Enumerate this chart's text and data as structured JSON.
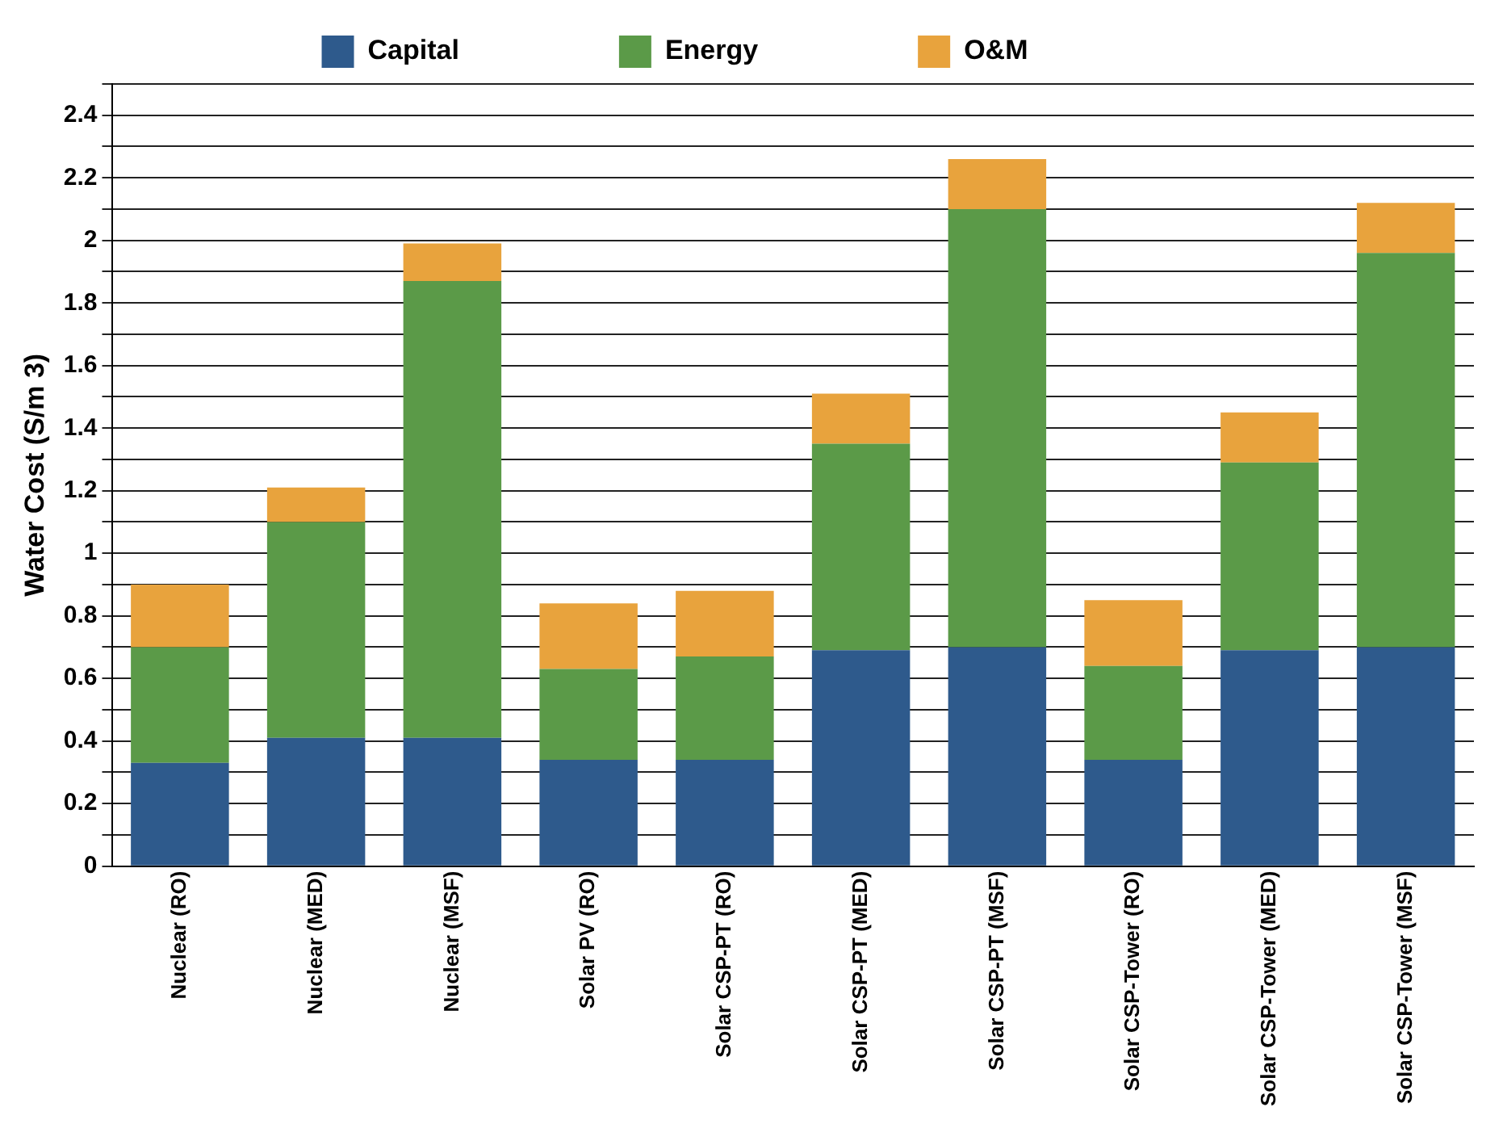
{
  "chart_data": {
    "type": "bar",
    "stacked": true,
    "ylabel": "Water Cost (S/m 3)",
    "categories": [
      "Nuclear (RO)",
      "Nuclear (MED)",
      "Nuclear (MSF)",
      "Solar PV (RO)",
      "Solar CSP-PT (RO)",
      "Solar CSP-PT (MED)",
      "Solar CSP-PT (MSF)",
      "Solar CSP-Tower (RO)",
      "Solar CSP-Tower (MED)",
      "Solar CSP-Tower (MSF)"
    ],
    "series": [
      {
        "name": "Capital",
        "color": "#2e5a8c",
        "values": [
          0.33,
          0.41,
          0.41,
          0.34,
          0.34,
          0.69,
          0.7,
          0.34,
          0.69,
          0.7
        ]
      },
      {
        "name": "Energy",
        "color": "#5b9a48",
        "values": [
          0.37,
          0.69,
          1.46,
          0.29,
          0.33,
          0.66,
          1.4,
          0.3,
          0.6,
          1.26
        ]
      },
      {
        "name": "O&M",
        "color": "#e8a33d",
        "values": [
          0.2,
          0.11,
          0.12,
          0.21,
          0.21,
          0.16,
          0.16,
          0.21,
          0.16,
          0.16
        ]
      }
    ],
    "ylim": [
      0,
      2.5
    ],
    "yticks": [
      0,
      {
        "value": 0.1,
        "label": null
      },
      0.2,
      {
        "value": 0.3,
        "label": null
      },
      0.4,
      {
        "value": 0.5,
        "label": null
      },
      0.6,
      {
        "value": 0.7,
        "label": null
      },
      0.8,
      {
        "value": 0.9,
        "label": null
      },
      1,
      {
        "value": 1.1,
        "label": null
      },
      1.2,
      {
        "value": 1.3,
        "label": null
      },
      1.4,
      {
        "value": 1.5,
        "label": null
      },
      1.6,
      {
        "value": 1.7,
        "label": null
      },
      1.8,
      {
        "value": 1.9,
        "label": null
      },
      2,
      {
        "value": 2.1,
        "label": null
      },
      2.2,
      {
        "value": 2.3,
        "label": null
      },
      2.4,
      {
        "value": 2.5,
        "label": null
      }
    ],
    "grid": "y",
    "legend": "top"
  }
}
